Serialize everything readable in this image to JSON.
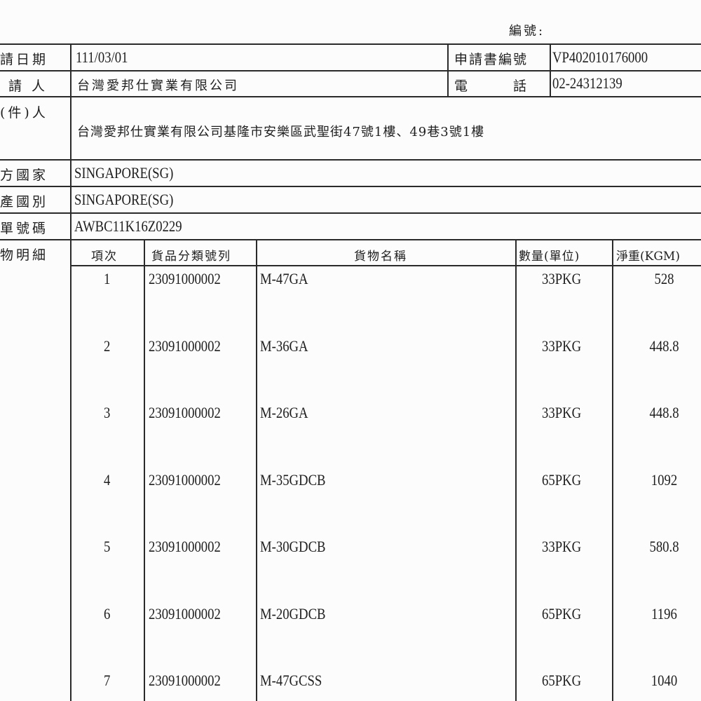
{
  "serial_label": "編號:",
  "fields": {
    "date_label": "請日期",
    "date_value": "111/03/01",
    "app_no_label": "申請書編號",
    "app_no_value": "VP402010176000",
    "applicant_label": "請 人",
    "applicant_value": "台灣愛邦仕實業有限公司",
    "phone_label": "電　　　話",
    "phone_value": "02-24312139",
    "consignee_label": "(件)人",
    "consignee_value": "台灣愛邦仕實業有限公司基隆市安樂區武聖街47號1樓、49巷3號1樓",
    "country_label": "方國家",
    "country_value": "SINGAPORE(SG)",
    "origin_label": "產國別",
    "origin_value": "SINGAPORE(SG)",
    "bill_label": "單號碼",
    "bill_value": "AWBC11K16Z0229",
    "goods_label": "物明細"
  },
  "goods_table": {
    "headers": [
      "項次",
      "貨品分類號列",
      "貨物名稱",
      "數量(單位)",
      "淨重(KGM)"
    ],
    "rows": [
      {
        "item": "1",
        "code": "23091000002",
        "name": "M-47GA",
        "qty": "33PKG",
        "weight": "528"
      },
      {
        "item": "2",
        "code": "23091000002",
        "name": "M-36GA",
        "qty": "33PKG",
        "weight": "448.8"
      },
      {
        "item": "3",
        "code": "23091000002",
        "name": "M-26GA",
        "qty": "33PKG",
        "weight": "448.8"
      },
      {
        "item": "4",
        "code": "23091000002",
        "name": "M-35GDCB",
        "qty": "65PKG",
        "weight": "1092"
      },
      {
        "item": "5",
        "code": "23091000002",
        "name": "M-30GDCB",
        "qty": "33PKG",
        "weight": "580.8"
      },
      {
        "item": "6",
        "code": "23091000002",
        "name": "M-20GDCB",
        "qty": "65PKG",
        "weight": "1196"
      },
      {
        "item": "7",
        "code": "23091000002",
        "name": "M-47GCSS",
        "qty": "65PKG",
        "weight": "1040"
      }
    ]
  }
}
